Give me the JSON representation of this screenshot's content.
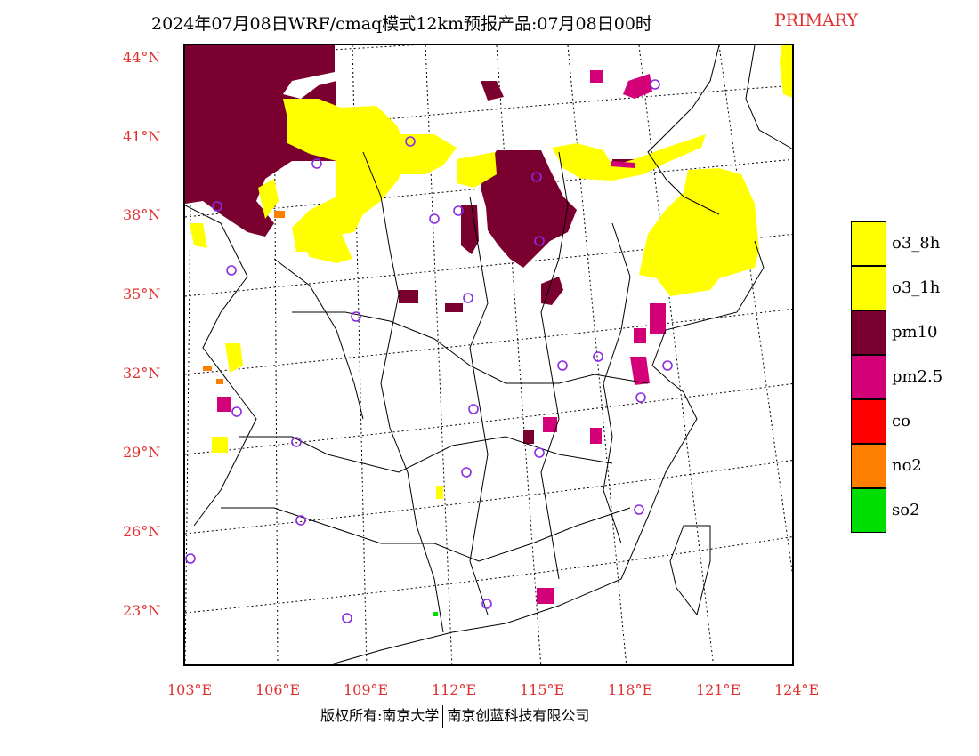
{
  "title": "2024年07月08日WRF/cmaq模式12km预报产品:07月08日00时",
  "tag": "PRIMARY",
  "lat_labels": [
    "44°N",
    "41°N",
    "38°N",
    "35°N",
    "32°N",
    "29°N",
    "26°N",
    "23°N"
  ],
  "lon_labels": [
    "103°E",
    "106°E",
    "109°E",
    "112°E",
    "115°E",
    "118°E",
    "121°E",
    "124°E"
  ],
  "legend": [
    {
      "label": "o3_8h",
      "color": "#ffff00"
    },
    {
      "label": "o3_1h",
      "color": "#ffff00"
    },
    {
      "label": "pm10",
      "color": "#7a0030"
    },
    {
      "label": "pm2.5",
      "color": "#d40078"
    },
    {
      "label": "co",
      "color": "#ff0000"
    },
    {
      "label": "no2",
      "color": "#ff8000"
    },
    {
      "label": "so2",
      "color": "#00dd00"
    }
  ],
  "footer": {
    "left": "版权所有:南京大学",
    "right": "南京创蓝科技有限公司"
  },
  "colors": {
    "accent": "#e03030",
    "station": "#8a2be2"
  }
}
